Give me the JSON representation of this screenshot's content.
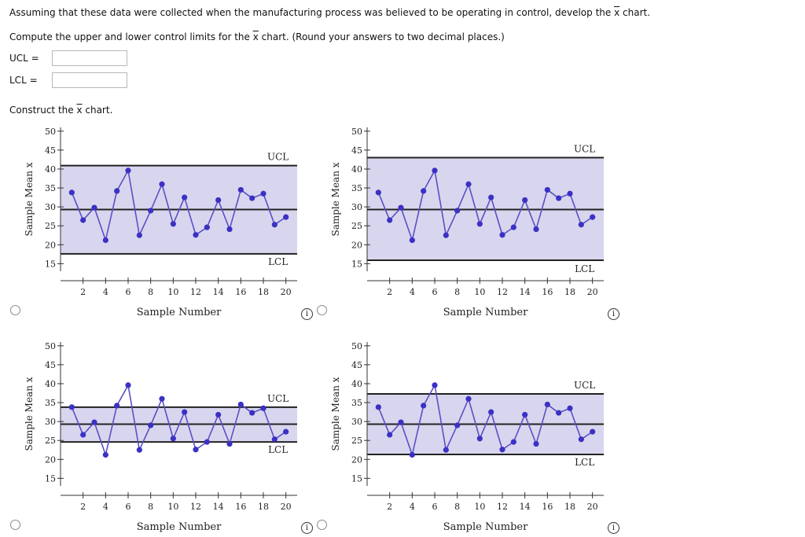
{
  "question": {
    "line1_before": "Assuming that these data were collected when the manufacturing process was believed to be operating in control, develop the ",
    "line1_var": "x",
    "line1_after": " chart.",
    "line2_before": "Compute the upper and lower control limits for the ",
    "line2_var": "x",
    "line2_after": " chart. (Round your answers to two decimal places.)",
    "ucl_label": "UCL  =",
    "ucl_value": "",
    "lcl_label": "LCL  =",
    "lcl_value": "",
    "construct_before": "Construct the ",
    "construct_var": "x",
    "construct_after": " chart."
  },
  "info_icon_glyph": "i",
  "chart_data": [
    {
      "type": "line",
      "x": [
        1,
        2,
        3,
        4,
        5,
        6,
        7,
        8,
        9,
        10,
        11,
        12,
        13,
        14,
        15,
        16,
        17,
        18,
        19,
        20
      ],
      "series": [
        {
          "values": [
            33.8,
            26.5,
            29.8,
            21.2,
            34.2,
            39.6,
            22.5,
            29,
            36,
            25.5,
            32.5,
            22.6,
            24.6,
            31.8,
            24.1,
            34.5,
            32.3,
            33.5,
            25.3,
            27.3
          ]
        }
      ],
      "center": 29.3,
      "ucl": 40.9,
      "lcl": 17.6,
      "ucl_label": "UCL",
      "lcl_label": "LCL",
      "xlabel": "Sample Number",
      "ylabel": "Sample Mean x",
      "yticks": [
        15,
        20,
        25,
        30,
        35,
        40,
        45,
        50
      ],
      "xticks": [
        2,
        4,
        6,
        8,
        10,
        12,
        14,
        16,
        18,
        20
      ],
      "ylim": [
        13,
        51
      ],
      "xlim": [
        0,
        21
      ],
      "fill_color": "#d8d6ee",
      "line_color": "#5a4fc4",
      "point_color": "#3b31c4"
    },
    {
      "type": "line",
      "x": [
        1,
        2,
        3,
        4,
        5,
        6,
        7,
        8,
        9,
        10,
        11,
        12,
        13,
        14,
        15,
        16,
        17,
        18,
        19,
        20
      ],
      "series": [
        {
          "values": [
            33.8,
            26.5,
            29.8,
            21.2,
            34.2,
            39.6,
            22.5,
            29,
            36,
            25.5,
            32.5,
            22.6,
            24.6,
            31.8,
            24.1,
            34.5,
            32.3,
            33.5,
            25.3,
            27.3
          ]
        }
      ],
      "center": 29.3,
      "ucl": 43.0,
      "lcl": 15.9,
      "ucl_label": "UCL",
      "lcl_label": "LCL",
      "xlabel": "Sample Number",
      "ylabel": "Sample Mean x",
      "yticks": [
        15,
        20,
        25,
        30,
        35,
        40,
        45,
        50
      ],
      "xticks": [
        2,
        4,
        6,
        8,
        10,
        12,
        14,
        16,
        18,
        20
      ],
      "ylim": [
        13,
        51
      ],
      "xlim": [
        0,
        21
      ],
      "fill_color": "#d8d6ee",
      "line_color": "#5a4fc4",
      "point_color": "#3b31c4"
    },
    {
      "type": "line",
      "x": [
        1,
        2,
        3,
        4,
        5,
        6,
        7,
        8,
        9,
        10,
        11,
        12,
        13,
        14,
        15,
        16,
        17,
        18,
        19,
        20
      ],
      "series": [
        {
          "values": [
            33.8,
            26.5,
            29.8,
            21.2,
            34.2,
            39.6,
            22.5,
            29,
            36,
            25.5,
            32.5,
            22.6,
            24.6,
            31.8,
            24.1,
            34.5,
            32.3,
            33.5,
            25.3,
            27.3
          ]
        }
      ],
      "center": 29.3,
      "ucl": 33.8,
      "lcl": 24.6,
      "ucl_label": "UCL",
      "lcl_label": "LCL",
      "xlabel": "Sample Number",
      "ylabel": "Sample Mean x",
      "yticks": [
        15,
        20,
        25,
        30,
        35,
        40,
        45,
        50
      ],
      "xticks": [
        2,
        4,
        6,
        8,
        10,
        12,
        14,
        16,
        18,
        20
      ],
      "ylim": [
        13,
        51
      ],
      "xlim": [
        0,
        21
      ],
      "fill_color": "#d8d6ee",
      "line_color": "#5a4fc4",
      "point_color": "#3b31c4"
    },
    {
      "type": "line",
      "x": [
        1,
        2,
        3,
        4,
        5,
        6,
        7,
        8,
        9,
        10,
        11,
        12,
        13,
        14,
        15,
        16,
        17,
        18,
        19,
        20
      ],
      "series": [
        {
          "values": [
            33.8,
            26.5,
            29.8,
            21.2,
            34.2,
            39.6,
            22.5,
            29,
            36,
            25.5,
            32.5,
            22.6,
            24.6,
            31.8,
            24.1,
            34.5,
            32.3,
            33.5,
            25.3,
            27.3
          ]
        }
      ],
      "center": 29.3,
      "ucl": 37.3,
      "lcl": 21.3,
      "ucl_label": "UCL",
      "lcl_label": "LCL",
      "xlabel": "Sample Number",
      "ylabel": "Sample Mean x",
      "yticks": [
        15,
        20,
        25,
        30,
        35,
        40,
        45,
        50
      ],
      "xticks": [
        2,
        4,
        6,
        8,
        10,
        12,
        14,
        16,
        18,
        20
      ],
      "ylim": [
        13,
        51
      ],
      "xlim": [
        0,
        21
      ],
      "fill_color": "#d8d6ee",
      "line_color": "#5a4fc4",
      "point_color": "#3b31c4"
    }
  ]
}
